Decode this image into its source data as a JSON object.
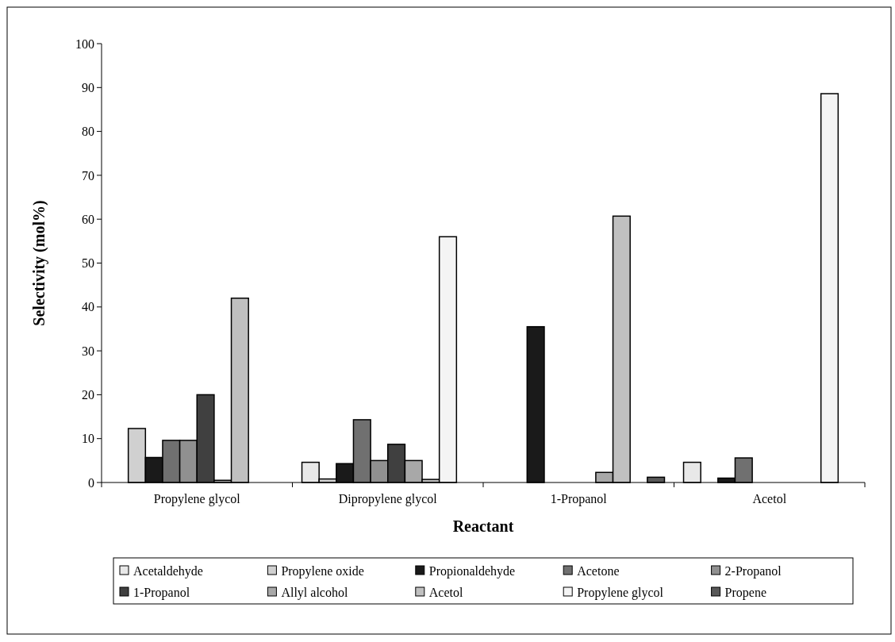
{
  "chart_data": {
    "type": "bar",
    "xlabel": "Reactant",
    "ylabel": "Selectivity (mol%)",
    "categories": [
      "Propylene glycol",
      "Dipropylene glycol",
      "1-Propanol",
      "Acetol"
    ],
    "series": [
      {
        "name": "Acetaldehyde",
        "color": "#e8e8e8",
        "values": [
          0,
          4.6,
          0,
          4.6
        ]
      },
      {
        "name": "Propylene oxide",
        "color": "#d0d0d0",
        "values": [
          12.3,
          0.8,
          0,
          0
        ]
      },
      {
        "name": "Propionaldehyde",
        "color": "#1a1a1a",
        "values": [
          5.7,
          4.3,
          35.5,
          1
        ]
      },
      {
        "name": "Acetone",
        "color": "#707070",
        "values": [
          9.6,
          14.3,
          0,
          5.6
        ]
      },
      {
        "name": "2-Propanol",
        "color": "#909090",
        "values": [
          9.6,
          5,
          0,
          0
        ]
      },
      {
        "name": "1-Propanol",
        "color": "#404040",
        "values": [
          20,
          8.7,
          0,
          0
        ]
      },
      {
        "name": "Allyl alcohol",
        "color": "#a8a8a8",
        "values": [
          0.5,
          5,
          2.3,
          0
        ]
      },
      {
        "name": "Acetol",
        "color": "#c0c0c0",
        "values": [
          42,
          0.7,
          60.7,
          0
        ]
      },
      {
        "name": "Propylene glycol",
        "color": "#f4f4f4",
        "values": [
          0,
          56,
          0,
          88.6
        ]
      },
      {
        "name": "Propene",
        "color": "#585858",
        "values": [
          0,
          0,
          1.2,
          0
        ]
      }
    ],
    "ylim": [
      0,
      100
    ],
    "yticks": [
      0,
      10,
      20,
      30,
      40,
      50,
      60,
      70,
      80,
      90,
      100
    ],
    "grid": false,
    "legend": "bottom"
  }
}
